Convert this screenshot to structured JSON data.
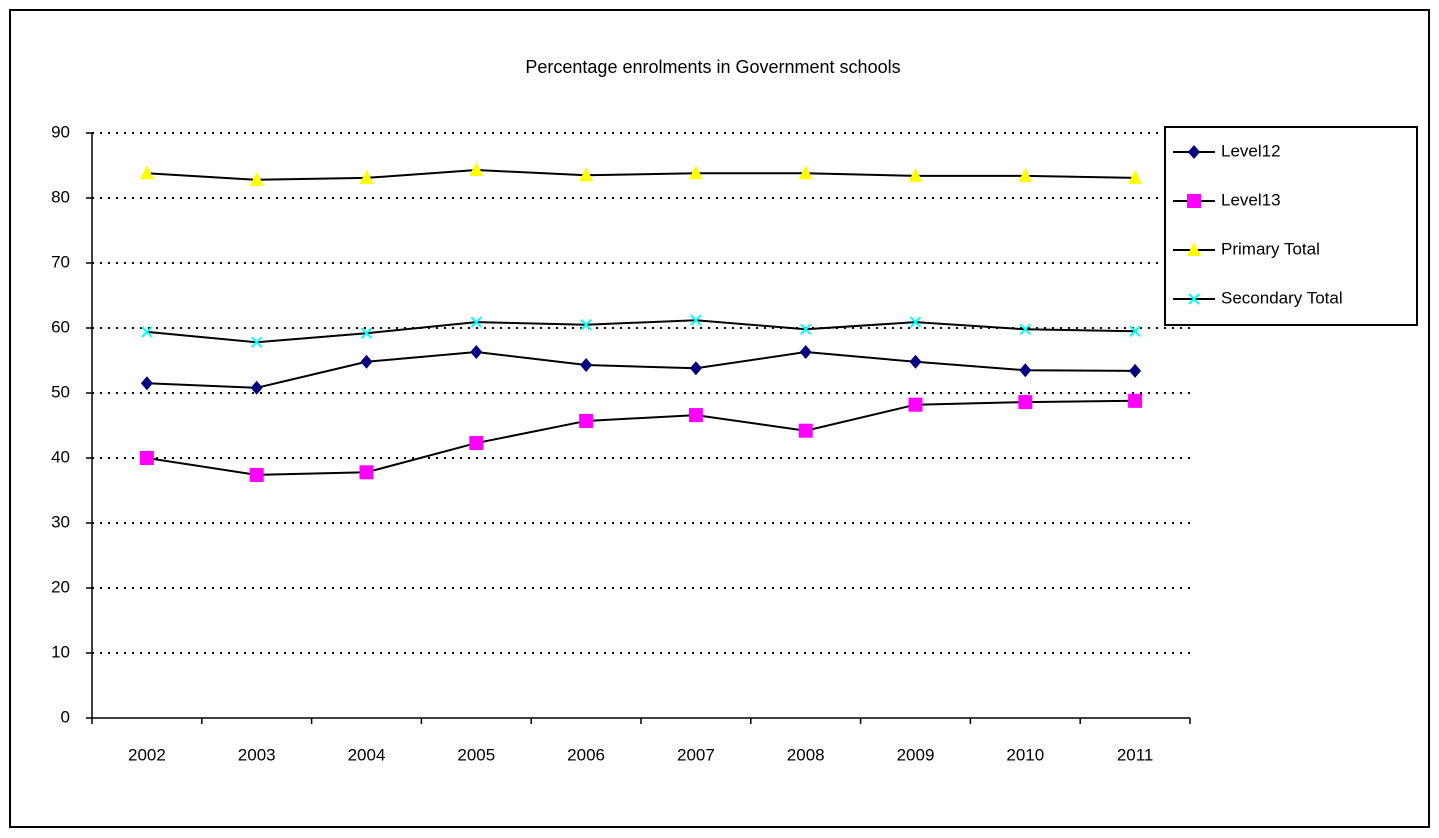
{
  "chart_data": {
    "type": "line",
    "title": "Percentage enrolments in Government schools",
    "categories": [
      "2002",
      "2003",
      "2004",
      "2005",
      "2006",
      "2007",
      "2008",
      "2009",
      "2010",
      "2011"
    ],
    "series": [
      {
        "name": "Level12",
        "color": "#000080",
        "marker": "diamond",
        "values": [
          51.5,
          50.8,
          54.8,
          56.3,
          54.3,
          53.8,
          56.3,
          54.8,
          53.5,
          53.4
        ]
      },
      {
        "name": "Level13",
        "color": "#ff00ff",
        "marker": "square",
        "values": [
          40,
          37.4,
          37.8,
          42.3,
          45.7,
          46.6,
          44.2,
          48.2,
          48.6,
          48.8
        ]
      },
      {
        "name": "Primary Total",
        "color": "#ffff00",
        "marker": "triangle",
        "values": [
          83.8,
          82.8,
          83.1,
          84.3,
          83.5,
          83.8,
          83.8,
          83.4,
          83.4,
          83.1
        ]
      },
      {
        "name": "Secondary Total",
        "color": "#00ffff",
        "marker": "cross",
        "values": [
          59.4,
          57.8,
          59.2,
          60.9,
          60.5,
          61.2,
          59.8,
          60.9,
          59.8,
          59.5
        ]
      }
    ],
    "line_color": "#000000",
    "ylim": [
      0,
      90
    ],
    "yticks": [
      0,
      10,
      20,
      30,
      40,
      50,
      60,
      70,
      80,
      90
    ],
    "grid": true,
    "legend": "right"
  }
}
